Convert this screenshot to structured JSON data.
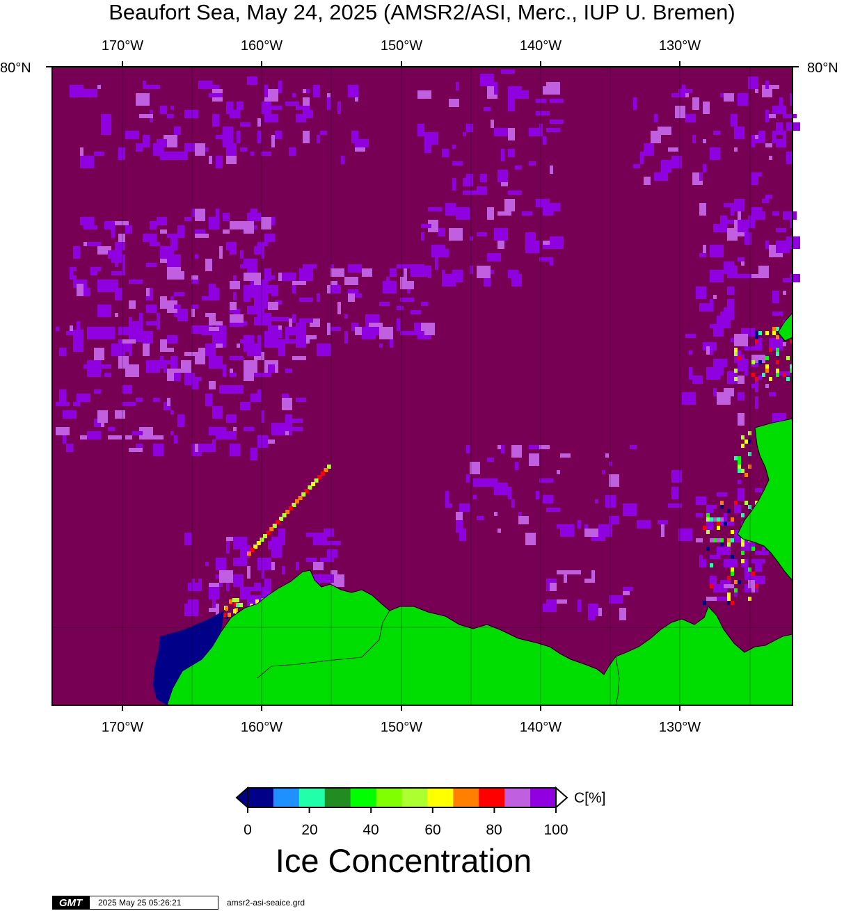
{
  "title": "Beaufort Sea, May 24, 2025 (AMSR2/ASI, Merc., IUP U. Bremen)",
  "map": {
    "longitude_ticks": [
      "170°W",
      "160°W",
      "150°W",
      "140°W",
      "130°W"
    ],
    "latitude_label": "80°N",
    "colors": {
      "ocean_full_ice": "#770055",
      "land": "#00dd00",
      "coastline": "#000000"
    }
  },
  "colorbar": {
    "colors": [
      "#000088",
      "#1e90ff",
      "#22ffaa",
      "#228b22",
      "#00ff00",
      "#7fff00",
      "#adff2f",
      "#ffff00",
      "#ff8000",
      "#ff0000",
      "#c060e0",
      "#9000e0"
    ],
    "tick_labels": [
      "0",
      "20",
      "40",
      "60",
      "80",
      "100"
    ],
    "unit": "C[%]",
    "title": "Ice Concentration"
  },
  "footer": {
    "logo": "GMT",
    "timestamp": "2025 May 25 05:26:21",
    "grid_file": "amsr2-asi-seaice.grd"
  }
}
